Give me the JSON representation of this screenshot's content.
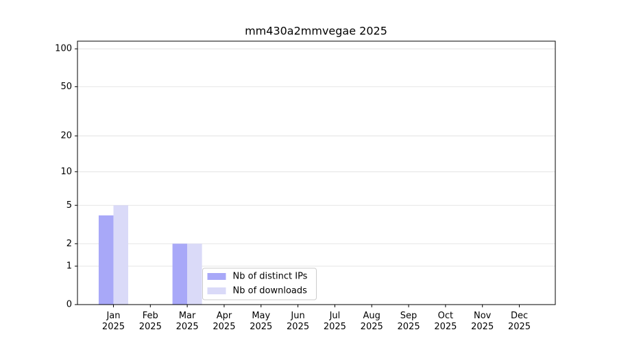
{
  "chart_data": {
    "type": "bar",
    "title": "mm430a2mmvegae 2025",
    "categories": [
      "Jan\n2025",
      "Feb\n2025",
      "Mar\n2025",
      "Apr\n2025",
      "May\n2025",
      "Jun\n2025",
      "Jul\n2025",
      "Aug\n2025",
      "Sep\n2025",
      "Oct\n2025",
      "Nov\n2025",
      "Dec\n2025"
    ],
    "series": [
      {
        "name": "Nb of distinct IPs",
        "color": "#a8a8f8",
        "values": [
          4,
          0,
          2,
          0,
          0,
          0,
          0,
          0,
          0,
          0,
          0,
          0
        ]
      },
      {
        "name": "Nb of downloads",
        "color": "#dadaf8",
        "values": [
          5,
          0,
          2,
          0,
          0,
          0,
          0,
          0,
          0,
          0,
          0,
          0
        ]
      }
    ],
    "yscale": "log1p",
    "ylim": [
      0,
      115
    ],
    "yticks": [
      0,
      1,
      2,
      5,
      10,
      20,
      50,
      100
    ],
    "grid": true,
    "legend": "lower center"
  }
}
